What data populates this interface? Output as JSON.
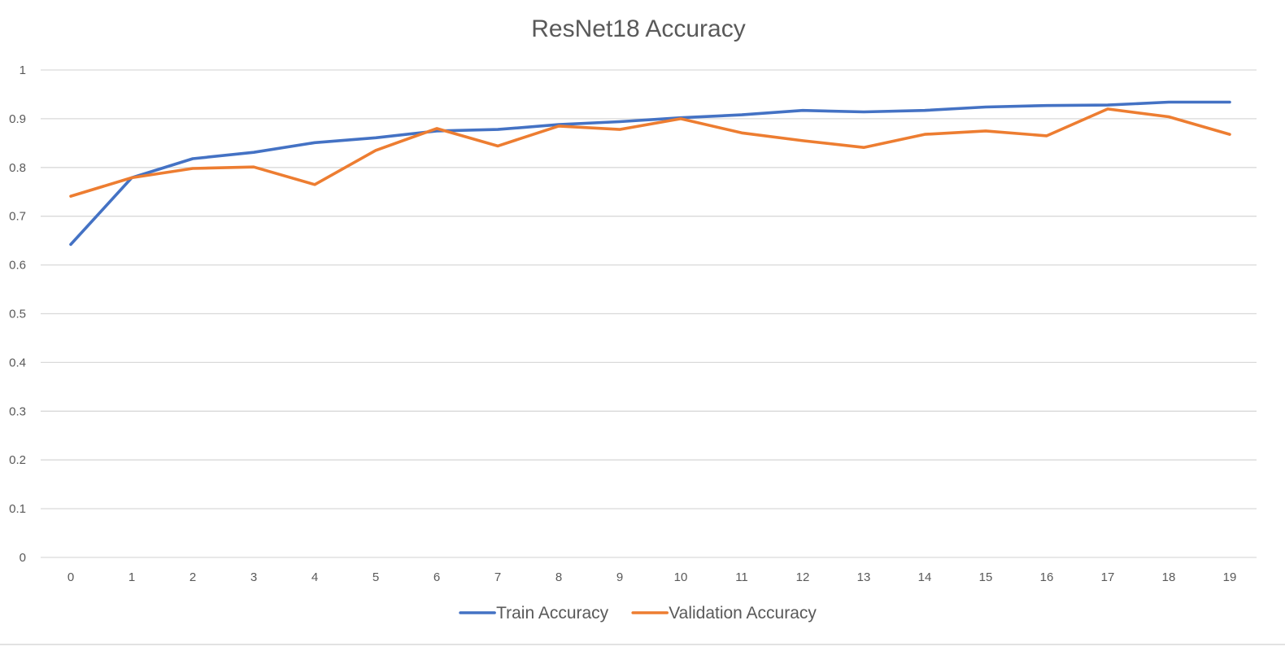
{
  "chart_data": {
    "type": "line",
    "title": "ResNet18 Accuracy",
    "xlabel": "",
    "ylabel": "",
    "categories": [
      "0",
      "1",
      "2",
      "3",
      "4",
      "5",
      "6",
      "7",
      "8",
      "9",
      "10",
      "11",
      "12",
      "13",
      "14",
      "15",
      "16",
      "17",
      "18",
      "19"
    ],
    "y_ticks": [
      "0",
      "0.1",
      "0.2",
      "0.3",
      "0.4",
      "0.5",
      "0.6",
      "0.7",
      "0.8",
      "0.9",
      "1"
    ],
    "ylim": [
      0,
      1
    ],
    "grid": true,
    "legend_position": "bottom",
    "series": [
      {
        "name": "Train Accuracy",
        "color": "#4472C4",
        "values": [
          0.642,
          0.779,
          0.818,
          0.831,
          0.851,
          0.861,
          0.875,
          0.878,
          0.888,
          0.894,
          0.902,
          0.908,
          0.917,
          0.914,
          0.917,
          0.924,
          0.927,
          0.928,
          0.934,
          0.934
        ]
      },
      {
        "name": "Validation Accuracy",
        "color": "#ED7D31",
        "values": [
          0.741,
          0.779,
          0.798,
          0.801,
          0.765,
          0.835,
          0.88,
          0.844,
          0.885,
          0.878,
          0.9,
          0.871,
          0.855,
          0.841,
          0.868,
          0.875,
          0.865,
          0.92,
          0.904,
          0.868
        ]
      }
    ]
  }
}
